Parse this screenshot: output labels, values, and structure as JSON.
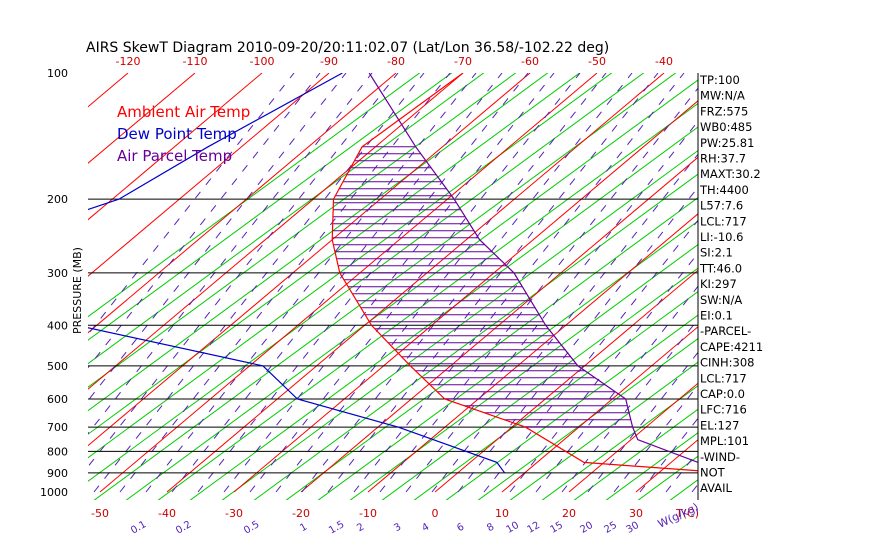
{
  "chart_data": {
    "type": "line",
    "title": "AIRS SkewT Diagram 2010-09-20/20:11:02.07 (Lat/Lon 36.58/-102.22 deg)",
    "ylabel": "PRESSURE (MB)",
    "xlabel": "T(C)",
    "mixing_ratio_axis_label": "W(g/kg)",
    "y_scale": "log",
    "ylim": [
      1000,
      100
    ],
    "pressure_ticks": [
      "100",
      "200",
      "300",
      "400",
      "500",
      "600",
      "700",
      "800",
      "900",
      "1000"
    ],
    "top_temp_ticks": [
      "-120",
      "-110",
      "-100",
      "-90",
      "-80",
      "-70",
      "-60",
      "-50",
      "-40"
    ],
    "bottom_temp_ticks": [
      "-50",
      "-40",
      "-30",
      "-20",
      "-10",
      "0",
      "10",
      "20",
      "30"
    ],
    "mixing_ratio_ticks": [
      "0.1",
      "0.2",
      "0.5",
      "1",
      "1.5",
      "2",
      "3",
      "4",
      "6",
      "8",
      "10",
      "12",
      "15",
      "20",
      "25",
      "30"
    ],
    "legend_placement": "top-left",
    "series": [
      {
        "name": "Ambient Air Temp",
        "color": "#ff0000",
        "pressure": [
          100,
          150,
          200,
          250,
          300,
          400,
          500,
          600,
          700,
          850,
          900
        ],
        "temperature": [
          -70,
          -72,
          -67,
          -60,
          -53,
          -39,
          -26,
          -15,
          2,
          17,
          40
        ]
      },
      {
        "name": "Dew Point Temp",
        "color": "#0000cc",
        "pressure": [
          100,
          150,
          200,
          250,
          300,
          400,
          500,
          600,
          700,
          850,
          900
        ],
        "temperature": [
          -88,
          -95,
          -99,
          -110,
          -109,
          -83,
          -48,
          -37,
          -17,
          4,
          7
        ]
      },
      {
        "name": "Air Parcel Temp",
        "color": "#660099",
        "pressure": [
          100,
          150,
          200,
          250,
          300,
          400,
          500,
          600,
          700,
          750,
          900
        ],
        "temperature": [
          -84,
          -64,
          -49,
          -38,
          -27,
          -13,
          -1,
          12,
          18,
          21,
          40
        ]
      }
    ],
    "indices": [
      "TP:100",
      "MW:N/A",
      "FRZ:575",
      "WB0:485",
      "PW:25.81",
      "RH:37.7",
      "MAXT:30.2",
      "TH:4400",
      "L57:7.6",
      "LCL:717",
      "LI:-10.6",
      "SI:2.1",
      "TT:46.0",
      "KI:297",
      "SW:N/A",
      "EI:0.1",
      "-PARCEL-",
      "CAPE:4211",
      "CINH:308",
      "LCL:717",
      "CAP:0.0",
      "LFC:716",
      "EL:127",
      "MPL:101",
      "-WIND-",
      "NOT",
      "AVAIL"
    ],
    "colors": {
      "isotherm": "#ff0000",
      "dry_adiabat": "#00cc00",
      "mixing_ratio": "#5522bb",
      "isobar": "#000000",
      "cape_hatch": "#660099"
    }
  }
}
